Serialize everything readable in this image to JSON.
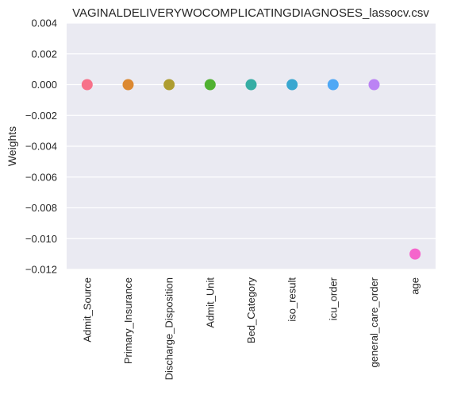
{
  "chart_data": {
    "type": "scatter",
    "title": "VAGINALDELIVERYWOCOMPLICATINGDIAGNOSES_lassocv.csv",
    "xlabel": "",
    "ylabel": "Weights",
    "categories": [
      "Admit_Source",
      "Primary_Insurance",
      "Discharge_Disposition",
      "Admit_Unit",
      "Bed_Category",
      "iso_result",
      "icu_order",
      "general_care_order",
      "age"
    ],
    "values": [
      0.0,
      0.0,
      0.0,
      0.0,
      0.0,
      0.0,
      0.0,
      0.0,
      -0.011
    ],
    "colors": [
      "#f77189",
      "#dc8932",
      "#ae9d31",
      "#50b131",
      "#36ada4",
      "#39a7d0",
      "#4fa8f5",
      "#bb83f4",
      "#f565cc"
    ],
    "ylim": [
      -0.012,
      0.004
    ],
    "yticks": [
      0.004,
      0.002,
      0.0,
      -0.002,
      -0.004,
      -0.006,
      -0.008,
      -0.01,
      -0.012
    ],
    "ytick_labels": [
      "0.004",
      "0.002",
      "0.000",
      "−0.002",
      "−0.004",
      "−0.006",
      "−0.008",
      "−0.010",
      "−0.012"
    ],
    "grid": true,
    "background": "#eaeaf2"
  }
}
